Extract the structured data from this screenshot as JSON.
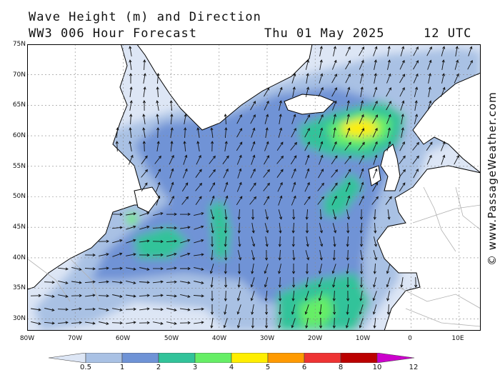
{
  "header": {
    "title": "Wave Height (m) and Direction",
    "model": "WW3 006 Hour Forecast",
    "date": "Thu 01 May 2025",
    "time": "12 UTC"
  },
  "credit": "© www.PassageWeather.com",
  "map": {
    "lat_labels": [
      "75N",
      "70N",
      "65N",
      "60N",
      "55N",
      "50N",
      "45N",
      "40N",
      "35N",
      "30N"
    ],
    "lon_labels": [
      "80W",
      "70W",
      "60W",
      "50W",
      "40W",
      "30W",
      "20W",
      "10W",
      "0",
      "10E"
    ],
    "lat_range": [
      28,
      75
    ],
    "lon_range": [
      -80,
      14
    ],
    "colors": {
      "land": "#ffffff",
      "ocean_base": "#dde6f5",
      "coast": "#000000",
      "border": "#b0b0b0",
      "arrow": "#111111"
    }
  },
  "colorbar": {
    "labels": [
      "0.5",
      "1",
      "2",
      "3",
      "4",
      "5",
      "6",
      "8",
      "10",
      "12"
    ],
    "colors": [
      "#dde6f5",
      "#a9c1e4",
      "#6f93d6",
      "#32c39a",
      "#66ee66",
      "#ffee00",
      "#ff9a00",
      "#ee3333",
      "#bb0000",
      "#cc00cc"
    ]
  }
}
